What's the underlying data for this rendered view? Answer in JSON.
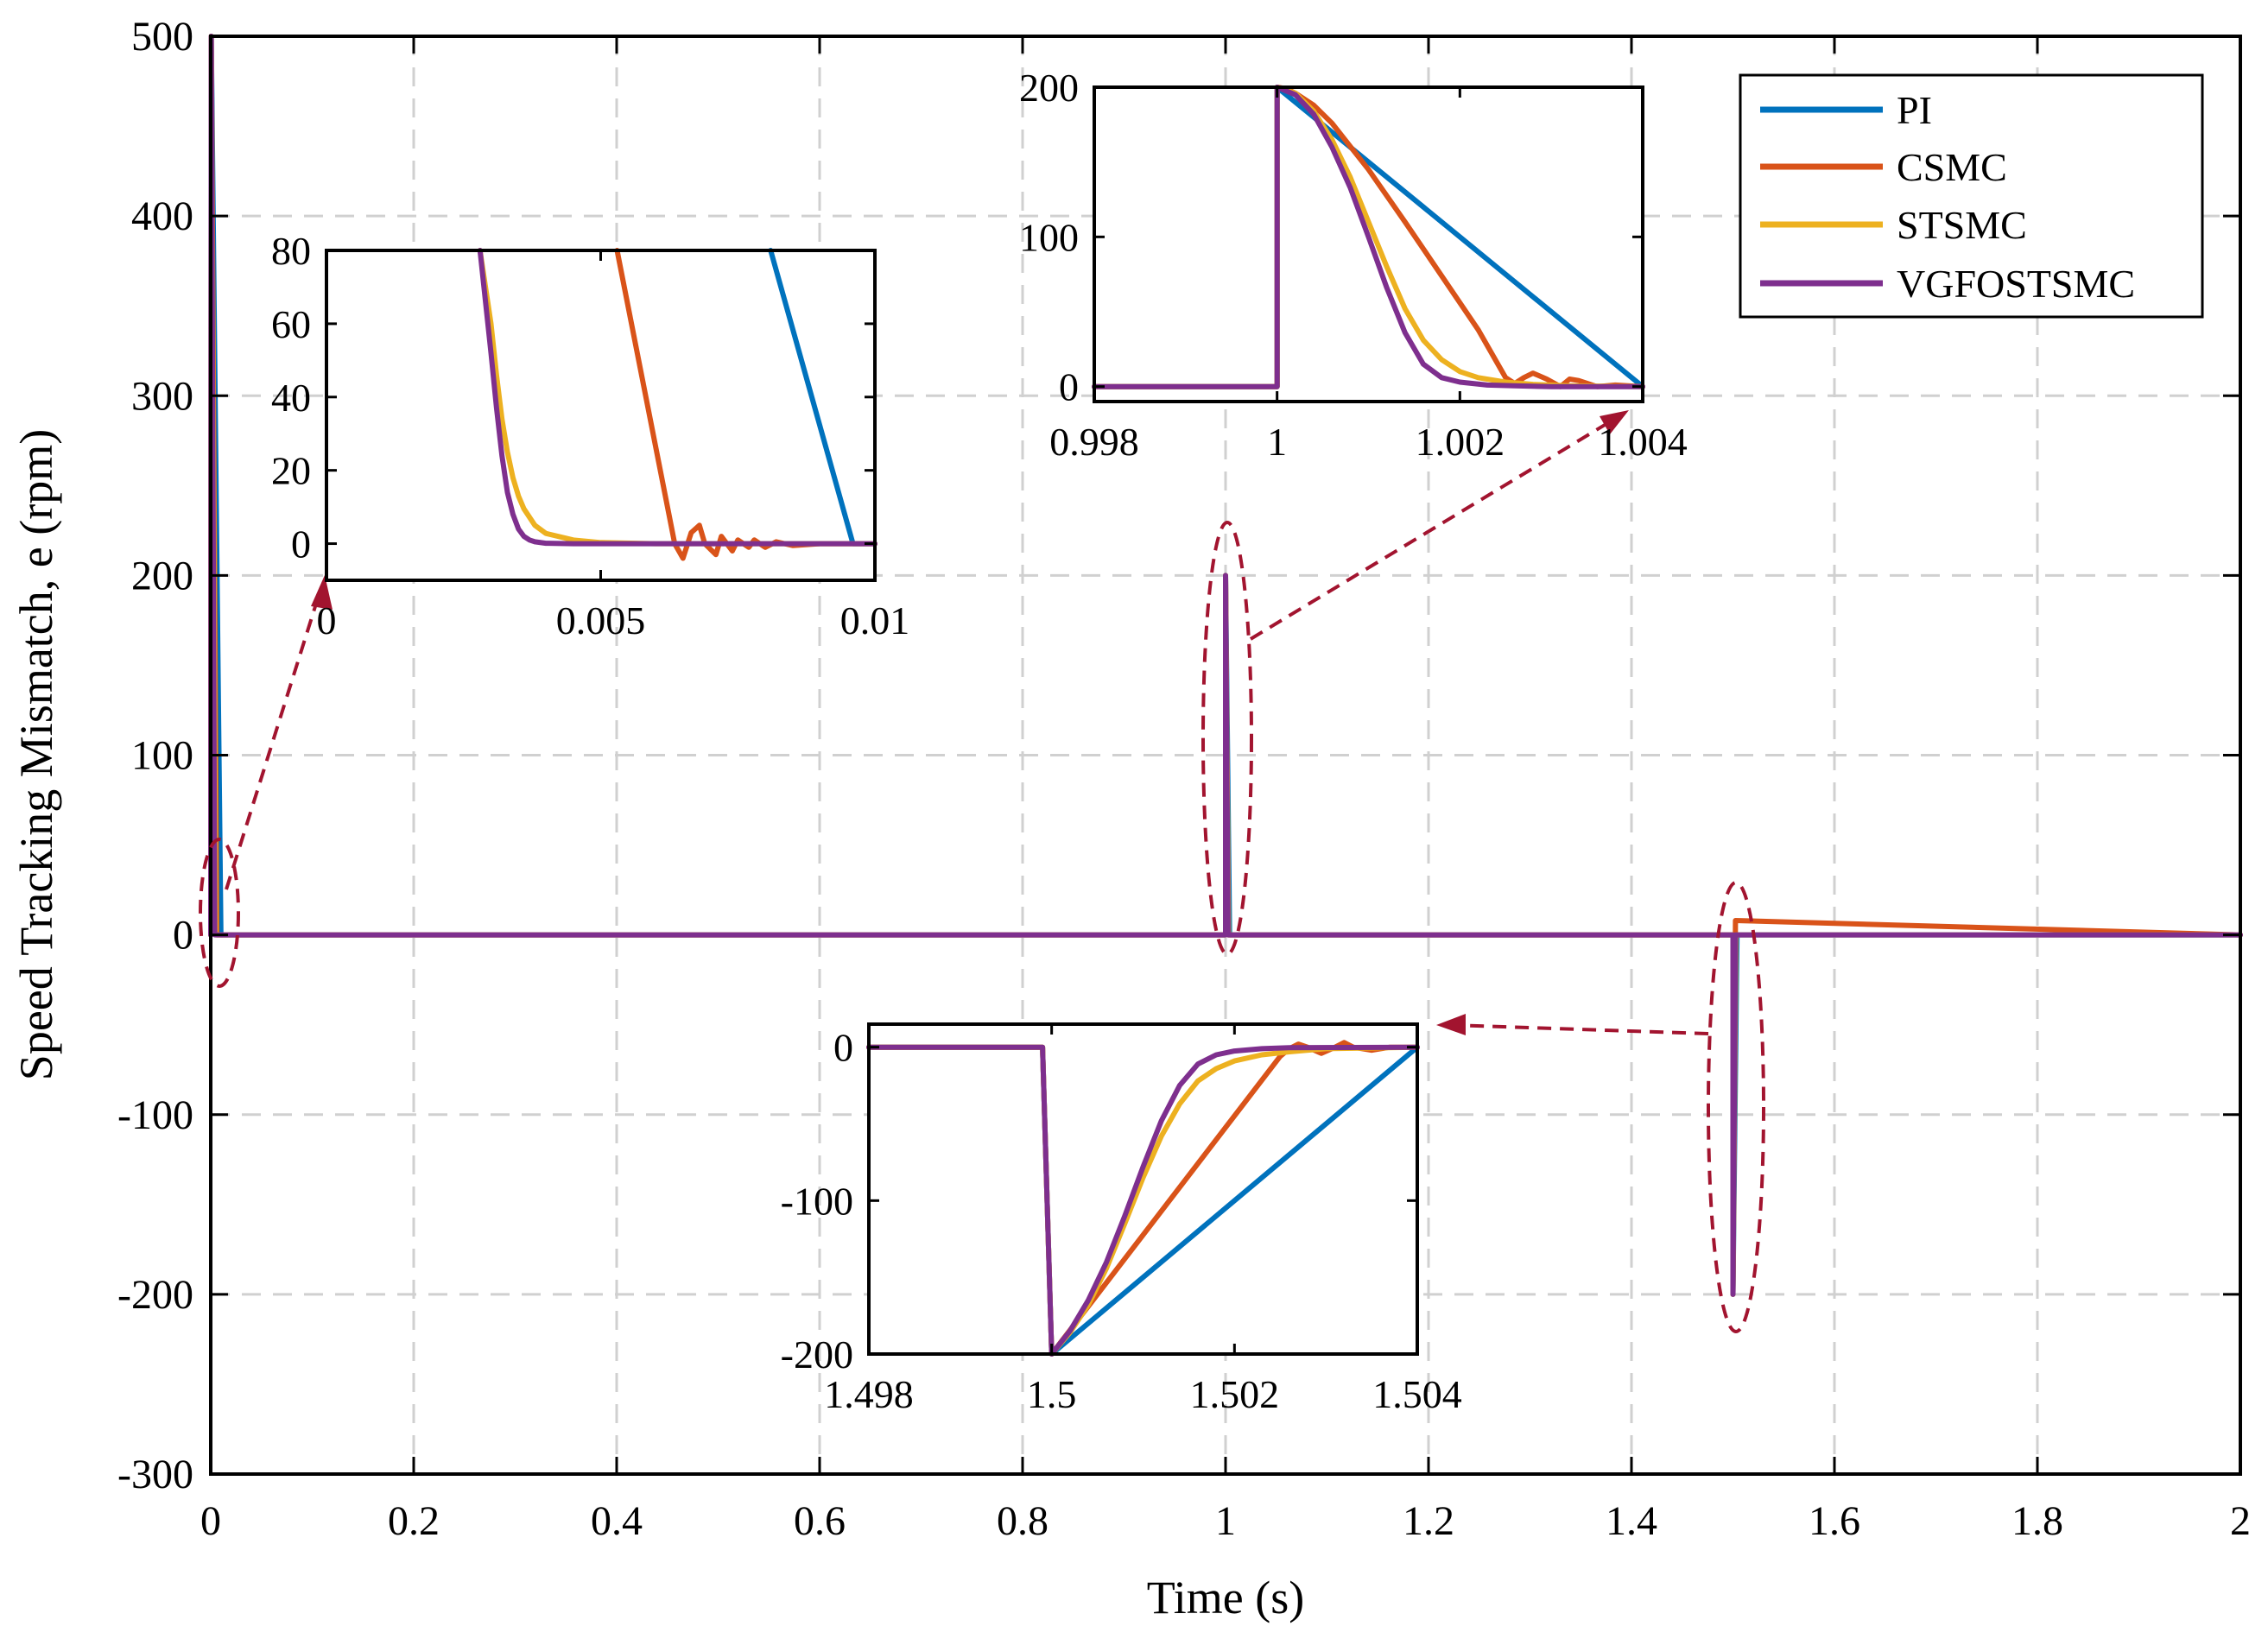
{
  "colors": {
    "PI": "#0072bd",
    "CSMC": "#d95319",
    "STSMC": "#edb120",
    "VGFOSTSMC": "#7e2f8e",
    "annotation": "#a2142f",
    "grid": "#d0d0d0"
  },
  "chart_data": [
    {
      "type": "line",
      "id": "main",
      "xlabel": "Time (s)",
      "ylabel": "Speed Tracking Mismatch, e (rpm)",
      "xlim": [
        0,
        2
      ],
      "ylim": [
        -300,
        500
      ],
      "xticks": [
        0,
        0.2,
        0.4,
        0.6,
        0.8,
        1,
        1.2,
        1.4,
        1.6,
        1.8,
        2
      ],
      "xtick_labels": [
        "0",
        "0.2",
        "0.4",
        "0.6",
        "0.8",
        "1",
        "1.2",
        "1.4",
        "1.6",
        "1.8",
        "2"
      ],
      "yticks": [
        -300,
        -200,
        -100,
        0,
        100,
        200,
        300,
        400,
        500
      ],
      "ytick_labels": [
        "-300",
        "-200",
        "-100",
        "0",
        "100",
        "200",
        "300",
        "400",
        "500"
      ],
      "grid": true,
      "legend_position": "top-right",
      "series": [
        {
          "name": "PI",
          "x": [
            0,
            0.0005,
            0.01,
            0.0104,
            1.0,
            1.0,
            1.004,
            1.5,
            1.5,
            1.504,
            2.0
          ],
          "y": [
            0,
            500,
            0,
            0,
            0,
            200,
            0,
            0,
            -200,
            0,
            0
          ]
        },
        {
          "name": "CSMC",
          "x": [
            0,
            0.0005,
            0.006,
            0.007,
            1.0,
            1.0,
            1.0025,
            1.5,
            1.5,
            1.5025,
            2.0
          ],
          "y": [
            0,
            500,
            0,
            0,
            0,
            200,
            0,
            0,
            -200,
            8,
            0
          ]
        },
        {
          "name": "STSMC",
          "x": [
            0,
            0.0005,
            0.005,
            0.007,
            1.0,
            1.0,
            1.003,
            1.5,
            1.5,
            1.503,
            2.0
          ],
          "y": [
            0,
            500,
            0,
            0,
            0,
            200,
            0,
            0,
            -200,
            0,
            0
          ]
        },
        {
          "name": "VGFOSTSMC",
          "x": [
            0,
            0.0005,
            0.004,
            0.006,
            1.0,
            1.0,
            1.0025,
            1.5,
            1.5,
            1.5025,
            2.0
          ],
          "y": [
            0,
            500,
            0,
            0,
            0,
            200,
            0,
            0,
            -200,
            0,
            0
          ]
        }
      ]
    },
    {
      "type": "line",
      "id": "inset_start",
      "xlim": [
        0,
        0.01
      ],
      "ylim": [
        -10,
        80
      ],
      "xticks": [
        0,
        0.005,
        0.01
      ],
      "xtick_labels": [
        "0",
        "0.005",
        "0.01"
      ],
      "yticks": [
        0,
        20,
        40,
        60,
        80
      ],
      "ytick_labels": [
        "0",
        "20",
        "40",
        "60",
        "80"
      ],
      "series": [
        {
          "name": "PI",
          "x": [
            0.0081,
            0.0096,
            0.01
          ],
          "y": [
            80,
            0,
            0
          ]
        },
        {
          "name": "CSMC",
          "x": [
            0.0053,
            0.00635,
            0.0065,
            0.00665,
            0.0068,
            0.0069,
            0.0071,
            0.0072,
            0.0074,
            0.0075,
            0.0077,
            0.0078,
            0.008,
            0.0082,
            0.0085,
            0.009,
            0.01
          ],
          "y": [
            80,
            0,
            -4,
            3,
            5,
            0,
            -3,
            2,
            -2,
            1,
            -1,
            1,
            -1,
            0.5,
            -0.5,
            0,
            0
          ]
        },
        {
          "name": "STSMC",
          "x": [
            0.0028,
            0.003,
            0.0031,
            0.0032,
            0.0033,
            0.0034,
            0.0035,
            0.0036,
            0.0038,
            0.004,
            0.0045,
            0.005,
            0.006,
            0.01
          ],
          "y": [
            80,
            60,
            46,
            34,
            25,
            18,
            13,
            9.5,
            5,
            2.8,
            1,
            0.3,
            0,
            0
          ]
        },
        {
          "name": "VGFOSTSMC",
          "x": [
            0.0028,
            0.003,
            0.0031,
            0.0032,
            0.0033,
            0.0034,
            0.0035,
            0.0036,
            0.0037,
            0.0038,
            0.004,
            0.0045,
            0.01
          ],
          "y": [
            80,
            52,
            37,
            24,
            14,
            8,
            4,
            2,
            1,
            0.5,
            0.1,
            0,
            0
          ]
        }
      ]
    },
    {
      "type": "line",
      "id": "inset_t1",
      "xlim": [
        0.998,
        1.004
      ],
      "ylim": [
        -10,
        200
      ],
      "xticks": [
        0.998,
        1,
        1.002,
        1.004
      ],
      "xtick_labels": [
        "0.998",
        "1",
        "1.002",
        "1.004"
      ],
      "yticks": [
        0,
        100,
        200
      ],
      "ytick_labels": [
        "0",
        "100",
        "200"
      ],
      "series": [
        {
          "name": "PI",
          "x": [
            0.998,
            1.0,
            1.0,
            1.004
          ],
          "y": [
            0,
            0,
            200,
            0
          ]
        },
        {
          "name": "CSMC",
          "x": [
            0.998,
            1.0,
            1.0,
            1.0001,
            1.0002,
            1.0004,
            1.0006,
            1.001,
            1.0014,
            1.0018,
            1.0022,
            1.0025,
            1.0026,
            1.0027,
            1.0028,
            1.00295,
            1.0031,
            1.0032,
            1.0033,
            1.0035,
            1.0037,
            1.004
          ],
          "y": [
            0,
            0,
            200,
            199,
            196,
            188,
            176,
            145,
            110,
            74,
            38,
            6,
            2,
            6,
            9,
            5,
            0,
            5,
            4,
            0,
            1,
            0
          ]
        },
        {
          "name": "STSMC",
          "x": [
            0.998,
            1.0,
            1.0,
            1.0002,
            1.0004,
            1.0006,
            1.0008,
            1.001,
            1.0012,
            1.0014,
            1.0016,
            1.0018,
            1.002,
            1.0022,
            1.0025,
            1.0028,
            1.0032,
            1.004
          ],
          "y": [
            0,
            0,
            200,
            196,
            184,
            165,
            140,
            110,
            80,
            52,
            31,
            18,
            10,
            6,
            3,
            1.5,
            0.5,
            0
          ]
        },
        {
          "name": "VGFOSTSMC",
          "x": [
            0.998,
            1.0,
            1.0,
            1.0002,
            1.0004,
            1.0006,
            1.0008,
            1.001,
            1.0012,
            1.0014,
            1.0016,
            1.0018,
            1.002,
            1.0023,
            1.0026,
            1.003,
            1.004
          ],
          "y": [
            0,
            0,
            200,
            195,
            182,
            160,
            133,
            100,
            66,
            36,
            15,
            6,
            3,
            1,
            0.5,
            0,
            0
          ]
        }
      ]
    },
    {
      "type": "line",
      "id": "inset_t15",
      "xlim": [
        1.498,
        1.504
      ],
      "ylim": [
        -200,
        15
      ],
      "xticks": [
        1.498,
        1.5,
        1.502,
        1.504
      ],
      "xtick_labels": [
        "1.498",
        "1.5",
        "1.502",
        "1.504"
      ],
      "yticks": [
        -200,
        -100,
        0
      ],
      "ytick_labels": [
        "-200",
        "-100",
        "0"
      ],
      "series": [
        {
          "name": "PI",
          "x": [
            1.498,
            1.4999,
            1.5,
            1.504
          ],
          "y": [
            0,
            0,
            -200,
            0
          ]
        },
        {
          "name": "CSMC",
          "x": [
            1.498,
            1.4999,
            1.5,
            1.5025,
            1.5026,
            1.5027,
            1.5028,
            1.50295,
            1.5031,
            1.5032,
            1.5033,
            1.5035,
            1.5037,
            1.504
          ],
          "y": [
            0,
            0,
            -200,
            -6,
            -1,
            2,
            0,
            -4,
            0,
            3,
            0,
            -2,
            0,
            0
          ]
        },
        {
          "name": "STSMC",
          "x": [
            1.498,
            1.4999,
            1.5,
            1.5002,
            1.5004,
            1.5006,
            1.5008,
            1.501,
            1.5012,
            1.5014,
            1.5016,
            1.5018,
            1.502,
            1.5023,
            1.5026,
            1.503,
            1.504
          ],
          "y": [
            0,
            0,
            -200,
            -186,
            -168,
            -144,
            -115,
            -85,
            -58,
            -37,
            -22,
            -14,
            -9,
            -5,
            -3,
            -1,
            0
          ]
        },
        {
          "name": "VGFOSTSMC",
          "x": [
            1.498,
            1.4999,
            1.5,
            1.5002,
            1.5004,
            1.5006,
            1.5008,
            1.501,
            1.5012,
            1.5014,
            1.5016,
            1.5018,
            1.502,
            1.5023,
            1.5026,
            1.504
          ],
          "y": [
            0,
            0,
            -200,
            -185,
            -165,
            -140,
            -110,
            -78,
            -48,
            -25,
            -11,
            -5,
            -2.5,
            -1,
            -0.3,
            0
          ]
        }
      ]
    }
  ]
}
